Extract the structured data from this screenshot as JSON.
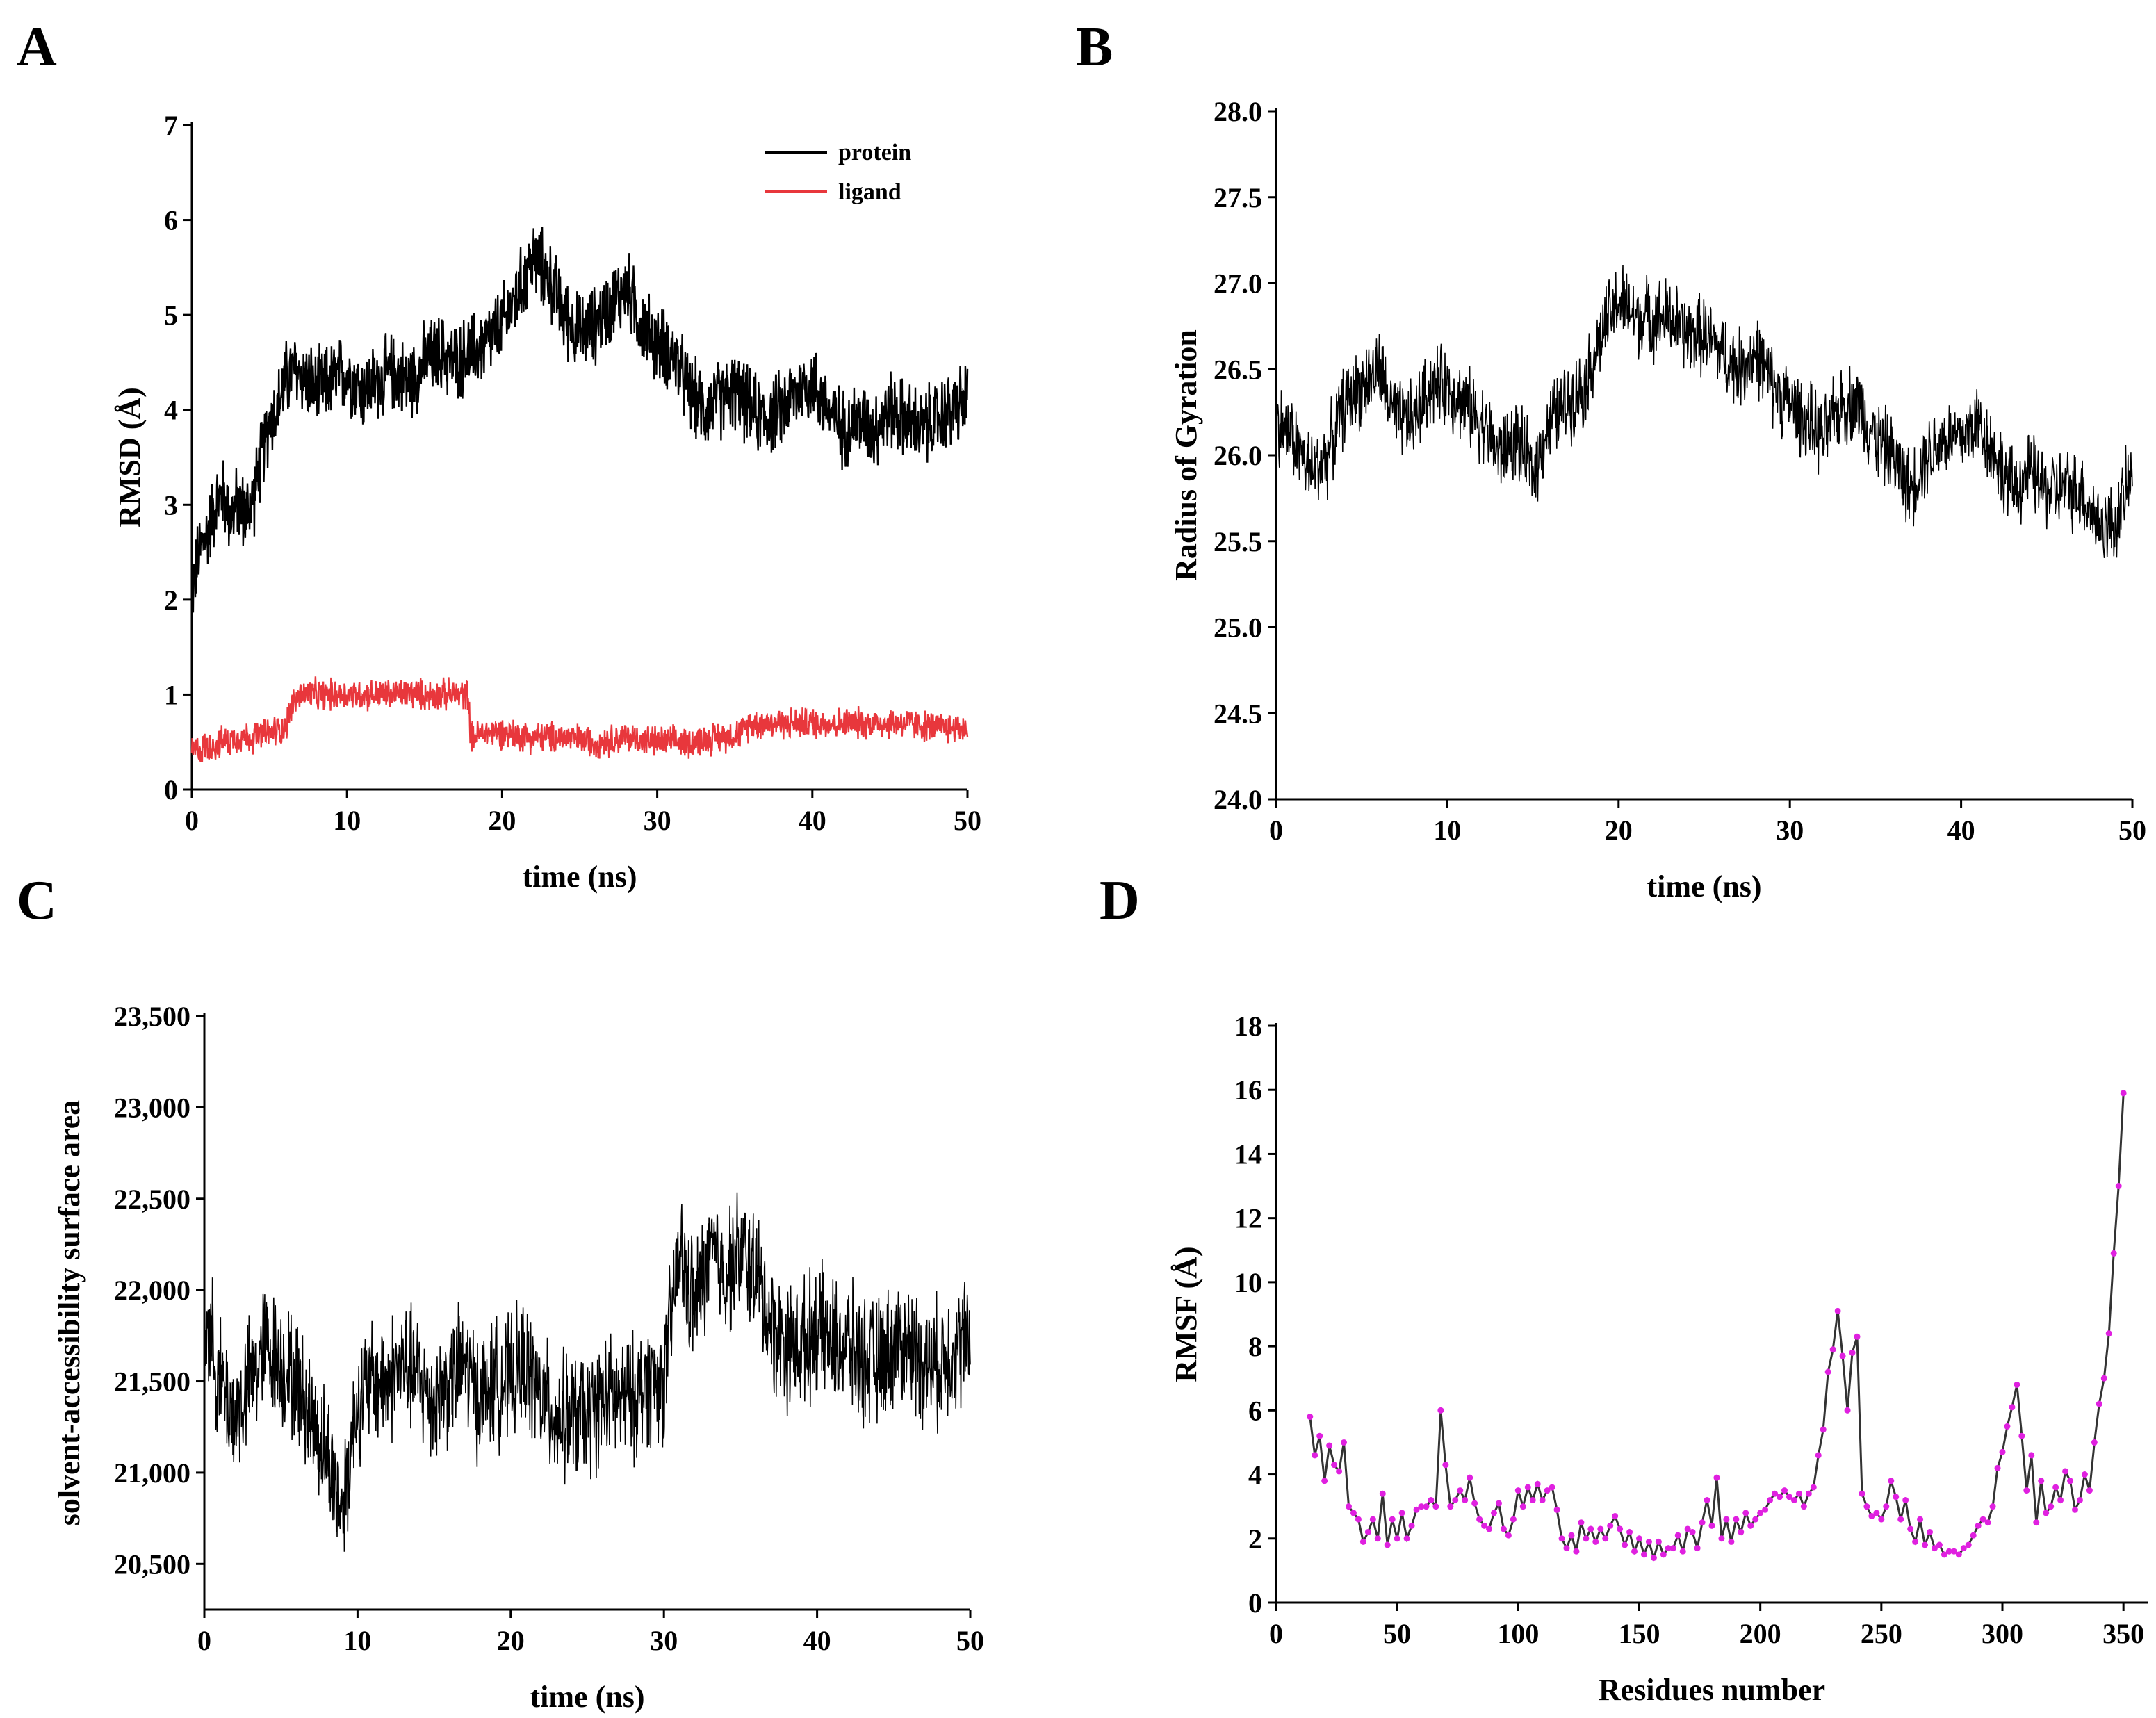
{
  "figure": {
    "panels": [
      "A",
      "B",
      "C",
      "D"
    ]
  },
  "chart_data": [
    {
      "id": "A",
      "type": "line",
      "title": "",
      "xlabel": "time (ns)",
      "ylabel": "RMSD (Å)",
      "xlim": [
        0,
        50
      ],
      "ylim": [
        0,
        7
      ],
      "xticks": [
        0,
        10,
        20,
        30,
        40,
        50
      ],
      "yticks": [
        0,
        1,
        2,
        3,
        4,
        5,
        6,
        7
      ],
      "xtick_labels": [
        "0",
        "10",
        "20",
        "30",
        "40",
        "50"
      ],
      "ytick_labels": [
        "0",
        "1",
        "2",
        "3",
        "4",
        "5",
        "6",
        "7"
      ],
      "legend": "top-right",
      "series": [
        {
          "name": "protein",
          "color": "#000000",
          "x": [
            0,
            0.5,
            1,
            1.5,
            2,
            2.5,
            3,
            3.5,
            4,
            4.5,
            5,
            5.5,
            6,
            6.5,
            7,
            7.5,
            8,
            9,
            10,
            11,
            12,
            13,
            14,
            15,
            16,
            17,
            18,
            19,
            20,
            21,
            22,
            23,
            24,
            25,
            26,
            27,
            28,
            29,
            30,
            31,
            32,
            33,
            34,
            35,
            36,
            37,
            38,
            39,
            40,
            41,
            42,
            43,
            44,
            45,
            46,
            47,
            48,
            49,
            50
          ],
          "values": [
            2.1,
            2.5,
            2.7,
            3.0,
            3.1,
            2.9,
            3.0,
            2.9,
            3.1,
            3.5,
            3.9,
            4.0,
            4.3,
            4.4,
            4.4,
            4.3,
            4.2,
            4.3,
            4.4,
            4.2,
            4.3,
            4.4,
            4.3,
            4.5,
            4.6,
            4.5,
            4.6,
            4.7,
            4.9,
            5.2,
            5.6,
            5.4,
            5.0,
            4.8,
            4.9,
            5.1,
            5.3,
            4.9,
            4.7,
            4.6,
            4.2,
            4.0,
            4.1,
            4.2,
            4.0,
            3.9,
            4.0,
            4.2,
            4.3,
            4.0,
            3.8,
            3.9,
            3.8,
            4.0,
            3.9,
            3.8,
            3.9,
            4.0,
            4.1
          ],
          "noise": 0.5
        },
        {
          "name": "ligand",
          "color": "#e8373c",
          "x": [
            0,
            1,
            2,
            3,
            4,
            5,
            6,
            6.5,
            7,
            8,
            9,
            10,
            11,
            12,
            13,
            14,
            15,
            16,
            17,
            17.8,
            18,
            19,
            20,
            22,
            24,
            26,
            28,
            30,
            32,
            34,
            35.5,
            36,
            38,
            40,
            42,
            44,
            46,
            48,
            50
          ],
          "values": [
            0.4,
            0.45,
            0.5,
            0.55,
            0.55,
            0.6,
            0.65,
            0.9,
            1.0,
            1.0,
            1.0,
            1.0,
            1.0,
            1.0,
            1.0,
            1.02,
            1.0,
            1.0,
            1.0,
            1.0,
            0.55,
            0.6,
            0.6,
            0.55,
            0.55,
            0.5,
            0.55,
            0.5,
            0.5,
            0.55,
            0.6,
            0.7,
            0.7,
            0.7,
            0.7,
            0.7,
            0.7,
            0.65,
            0.65
          ],
          "noise": 0.2
        }
      ]
    },
    {
      "id": "B",
      "type": "line",
      "title": "",
      "xlabel": "time (ns)",
      "ylabel": "Radius of Gyration",
      "xlim": [
        0,
        50
      ],
      "ylim": [
        24.0,
        28.0
      ],
      "xticks": [
        0,
        10,
        20,
        30,
        40,
        50
      ],
      "yticks": [
        24.0,
        24.5,
        25.0,
        25.5,
        26.0,
        26.5,
        27.0,
        27.5,
        28.0
      ],
      "xtick_labels": [
        "0",
        "10",
        "20",
        "30",
        "40",
        "50"
      ],
      "ytick_labels": [
        "24.0",
        "24.5",
        "25.0",
        "25.5",
        "26.0",
        "26.5",
        "27.0",
        "27.5",
        "28.0"
      ],
      "series": [
        {
          "name": "Radius of Gyration",
          "color": "#000000",
          "x": [
            0,
            1,
            2,
            3,
            4,
            5,
            6,
            7,
            8,
            9,
            10,
            11,
            12,
            13,
            14,
            15,
            16,
            17,
            18,
            19,
            20,
            21,
            22,
            23,
            24,
            25,
            26,
            27,
            28,
            29,
            30,
            31,
            32,
            33,
            34,
            35,
            36,
            37,
            38,
            39,
            40,
            41,
            42,
            43,
            44,
            45,
            46,
            47,
            48,
            49,
            50
          ],
          "values": [
            26.2,
            26.1,
            25.9,
            26.0,
            26.3,
            26.4,
            26.5,
            26.2,
            26.2,
            26.4,
            26.4,
            26.3,
            26.2,
            26.0,
            26.1,
            25.9,
            26.2,
            26.3,
            26.4,
            26.7,
            26.9,
            26.8,
            26.8,
            26.8,
            26.7,
            26.7,
            26.6,
            26.5,
            26.6,
            26.4,
            26.3,
            26.2,
            26.1,
            26.3,
            26.3,
            26.1,
            26.0,
            25.8,
            26.0,
            26.1,
            26.1,
            26.2,
            26.0,
            25.8,
            25.9,
            25.8,
            25.8,
            25.8,
            25.6,
            25.6,
            25.9
          ],
          "noise": 0.28
        }
      ]
    },
    {
      "id": "C",
      "type": "line",
      "title": "",
      "xlabel": "time (ns)",
      "ylabel": "solvent-accessibility surface area",
      "xlim": [
        0,
        50
      ],
      "ylim": [
        20250,
        23500
      ],
      "xticks": [
        0,
        10,
        20,
        30,
        40,
        50
      ],
      "yticks": [
        20500,
        21000,
        21500,
        22000,
        22500,
        23000,
        23500
      ],
      "xtick_labels": [
        "0",
        "10",
        "20",
        "30",
        "40",
        "50"
      ],
      "ytick_labels": [
        "20,500",
        "21,000",
        "21,500",
        "22,000",
        "22,500",
        "23,000",
        "23,500"
      ],
      "series": [
        {
          "name": "SASA",
          "color": "#000000",
          "x": [
            0,
            1,
            2,
            3,
            4,
            5,
            6,
            7,
            8,
            9,
            10,
            11,
            12,
            13,
            14,
            15,
            16,
            17,
            18,
            19,
            20,
            21,
            22,
            23,
            24,
            25,
            26,
            27,
            28,
            29,
            30,
            31,
            32,
            33,
            34,
            35,
            36,
            37,
            38,
            39,
            40,
            41,
            42,
            43,
            44,
            45,
            46,
            47,
            48,
            49,
            50
          ],
          "values": [
            21900,
            21500,
            21300,
            21500,
            21700,
            21600,
            21500,
            21300,
            21100,
            20800,
            21400,
            21500,
            21500,
            21600,
            21500,
            21400,
            21500,
            21600,
            21400,
            21500,
            21500,
            21600,
            21400,
            21300,
            21300,
            21300,
            21400,
            21400,
            21400,
            21500,
            21500,
            22200,
            21900,
            22200,
            22100,
            22200,
            22100,
            21800,
            21700,
            21700,
            21800,
            21700,
            21700,
            21600,
            21600,
            21700,
            21700,
            21600,
            21600,
            21700,
            21700
          ],
          "noise": 420
        }
      ]
    },
    {
      "id": "D",
      "type": "line",
      "title": "",
      "xlabel": "Residues number",
      "ylabel": "RMSF (Å)",
      "xlim": [
        0,
        360
      ],
      "ylim": [
        0,
        18
      ],
      "xticks": [
        0,
        50,
        100,
        150,
        200,
        250,
        300,
        350
      ],
      "yticks": [
        0,
        2,
        4,
        6,
        8,
        10,
        12,
        14,
        16,
        18
      ],
      "xtick_labels": [
        "0",
        "50",
        "100",
        "150",
        "200",
        "250",
        "300",
        "350"
      ],
      "ytick_labels": [
        "0",
        "2",
        "4",
        "6",
        "8",
        "10",
        "12",
        "14",
        "16",
        "18"
      ],
      "series": [
        {
          "name": "RMSF",
          "color": "#333333",
          "marker_color": "#e020e0",
          "x": [
            14,
            16,
            18,
            20,
            22,
            24,
            26,
            28,
            30,
            32,
            34,
            36,
            38,
            40,
            42,
            44,
            46,
            48,
            50,
            52,
            54,
            56,
            58,
            60,
            62,
            64,
            66,
            68,
            70,
            72,
            74,
            76,
            78,
            80,
            82,
            84,
            86,
            88,
            90,
            92,
            94,
            96,
            98,
            100,
            102,
            104,
            106,
            108,
            110,
            112,
            114,
            116,
            118,
            120,
            122,
            124,
            126,
            128,
            130,
            132,
            134,
            136,
            138,
            140,
            142,
            144,
            146,
            148,
            150,
            152,
            154,
            156,
            158,
            160,
            162,
            164,
            166,
            168,
            170,
            172,
            174,
            176,
            178,
            180,
            182,
            184,
            186,
            188,
            190,
            192,
            194,
            196,
            198,
            200,
            202,
            204,
            206,
            208,
            210,
            212,
            214,
            216,
            218,
            220,
            222,
            224,
            226,
            228,
            230,
            232,
            234,
            236,
            238,
            240,
            242,
            244,
            246,
            248,
            250,
            252,
            254,
            256,
            258,
            260,
            262,
            264,
            266,
            268,
            270,
            272,
            274,
            276,
            278,
            280,
            282,
            284,
            286,
            288,
            290,
            292,
            294,
            296,
            298,
            300,
            302,
            304,
            306,
            308,
            310,
            312,
            314,
            316,
            318,
            320,
            322,
            324,
            326,
            328,
            330,
            332,
            334,
            336,
            338,
            340,
            342,
            344,
            346,
            348,
            350
          ],
          "values": [
            5.8,
            4.6,
            5.2,
            3.8,
            4.9,
            4.3,
            4.1,
            5.0,
            3.0,
            2.8,
            2.6,
            1.9,
            2.2,
            2.6,
            2.0,
            3.4,
            1.8,
            2.6,
            2.0,
            2.8,
            2.0,
            2.4,
            2.9,
            3.0,
            3.0,
            3.2,
            3.0,
            6.0,
            4.3,
            3.0,
            3.2,
            3.5,
            3.2,
            3.9,
            3.1,
            2.6,
            2.4,
            2.3,
            2.8,
            3.1,
            2.3,
            2.1,
            2.6,
            3.5,
            3.0,
            3.6,
            3.2,
            3.7,
            3.2,
            3.5,
            3.6,
            2.9,
            2.0,
            1.7,
            2.1,
            1.6,
            2.5,
            2.0,
            2.3,
            1.9,
            2.3,
            2.0,
            2.4,
            2.7,
            2.3,
            1.8,
            2.2,
            1.6,
            2.0,
            1.5,
            1.9,
            1.4,
            1.9,
            1.5,
            1.7,
            1.7,
            2.1,
            1.6,
            2.3,
            2.2,
            1.7,
            2.5,
            3.2,
            2.4,
            3.9,
            2.0,
            2.6,
            1.9,
            2.6,
            2.2,
            2.8,
            2.4,
            2.6,
            2.8,
            2.9,
            3.2,
            3.4,
            3.3,
            3.5,
            3.3,
            3.2,
            3.4,
            3.0,
            3.4,
            3.6,
            4.6,
            5.4,
            7.2,
            7.9,
            9.1,
            7.7,
            6.0,
            7.8,
            8.3,
            3.4,
            3.0,
            2.7,
            2.8,
            2.6,
            3.0,
            3.8,
            3.3,
            2.6,
            3.2,
            2.3,
            1.9,
            2.6,
            1.8,
            2.2,
            1.7,
            1.8,
            1.5,
            1.6,
            1.6,
            1.5,
            1.7,
            1.8,
            2.1,
            2.4,
            2.6,
            2.5,
            3.0,
            4.2,
            4.7,
            5.5,
            6.1,
            6.8,
            5.2,
            3.5,
            4.6,
            2.5,
            3.8,
            2.8,
            3.0,
            3.6,
            3.2,
            4.1,
            3.8,
            2.9,
            3.2,
            4.0,
            3.5,
            5.0,
            6.2,
            7.0,
            8.4,
            10.9,
            13.0,
            15.9
          ]
        }
      ]
    }
  ]
}
